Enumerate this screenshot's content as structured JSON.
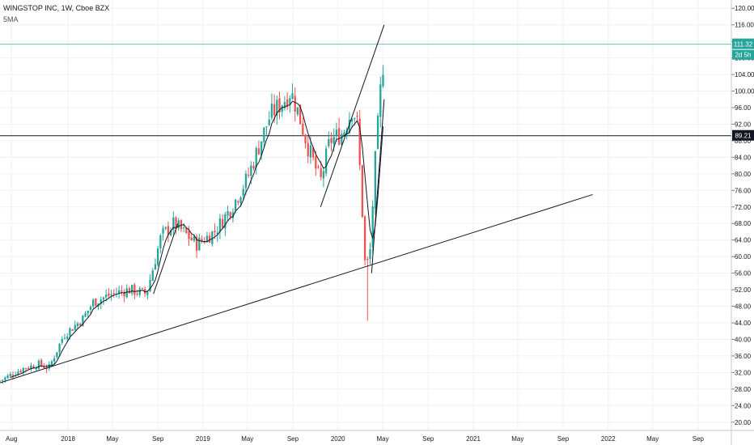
{
  "header": {
    "title": "WINGSTOP INC, 1W, Cboe BZX",
    "indicator": "5MA"
  },
  "price_tag": {
    "last": "111.32",
    "countdown": "2d 5h",
    "level": "89.21"
  },
  "colors": {
    "up": "#26a69a",
    "down": "#ef5350",
    "line": "#131722",
    "grid": "#eef0f4",
    "price_tag": "#26a69a",
    "level_tag": "#131722"
  },
  "chart_data": {
    "type": "candlestick",
    "symbol": "WINGSTOP INC",
    "interval": "1W",
    "exchange": "Cboe BZX",
    "ylim": [
      18,
      122
    ],
    "y_ticks": [
      120,
      116,
      112,
      108,
      104,
      100,
      96,
      92,
      88,
      84,
      80,
      76,
      72,
      68,
      64,
      60,
      56,
      52,
      48,
      44,
      40,
      36,
      32,
      28,
      24,
      20
    ],
    "y_tick_labels": [
      "120.00",
      "116.00",
      "112.00",
      "108.00",
      "104.00",
      "100.00",
      "96.00",
      "92.00",
      "88.00",
      "84.00",
      "80.00",
      "76.00",
      "72.00",
      "68.00",
      "64.00",
      "60.00",
      "56.00",
      "52.00",
      "48.00",
      "44.00",
      "40.00",
      "36.00",
      "32.00",
      "28.00",
      "24.00",
      "20.00"
    ],
    "x_start": "2017-07-01",
    "x_end": "2022-11-30",
    "x_ticks": [
      {
        "label": "Aug",
        "date": "2017-08-01"
      },
      {
        "label": "2018",
        "date": "2018-01-01"
      },
      {
        "label": "May",
        "date": "2018-05-01"
      },
      {
        "label": "Sep",
        "date": "2018-09-01"
      },
      {
        "label": "2019",
        "date": "2019-01-01"
      },
      {
        "label": "May",
        "date": "2019-05-01"
      },
      {
        "label": "Sep",
        "date": "2019-09-01"
      },
      {
        "label": "2020",
        "date": "2020-01-01"
      },
      {
        "label": "May",
        "date": "2020-05-01"
      },
      {
        "label": "Sep",
        "date": "2020-09-01"
      },
      {
        "label": "2021",
        "date": "2021-01-01"
      },
      {
        "label": "May",
        "date": "2021-05-01"
      },
      {
        "label": "Sep",
        "date": "2021-09-01"
      },
      {
        "label": "2022",
        "date": "2022-01-01"
      },
      {
        "label": "May",
        "date": "2022-05-01"
      },
      {
        "label": "Sep",
        "date": "2022-09-01"
      }
    ],
    "close_anchors": [
      [
        "2017-07-01",
        30
      ],
      [
        "2017-09-01",
        33
      ],
      [
        "2017-10-15",
        34
      ],
      [
        "2017-11-10",
        33
      ],
      [
        "2017-12-20",
        41
      ],
      [
        "2018-02-10",
        45
      ],
      [
        "2018-03-10",
        49
      ],
      [
        "2018-05-01",
        51
      ],
      [
        "2018-06-15",
        52
      ],
      [
        "2018-08-01",
        51
      ],
      [
        "2018-09-10",
        65
      ],
      [
        "2018-10-15",
        68
      ],
      [
        "2018-12-15",
        63
      ],
      [
        "2019-02-01",
        66
      ],
      [
        "2019-03-20",
        72
      ],
      [
        "2019-05-01",
        79
      ],
      [
        "2019-07-01",
        94
      ],
      [
        "2019-08-10",
        98
      ],
      [
        "2019-08-26",
        100
      ],
      [
        "2019-09-15",
        95
      ],
      [
        "2019-10-10",
        87
      ],
      [
        "2019-11-15",
        78
      ],
      [
        "2019-12-10",
        88
      ],
      [
        "2020-01-15",
        90
      ],
      [
        "2020-02-10",
        96
      ],
      [
        "2020-02-22",
        92
      ],
      [
        "2020-03-05",
        74
      ],
      [
        "2020-03-15",
        57
      ],
      [
        "2020-03-27",
        60
      ],
      [
        "2020-04-10",
        82
      ],
      [
        "2020-04-25",
        100
      ],
      [
        "2020-05-05",
        109
      ]
    ],
    "reference_levels": [
      111.32,
      89.21
    ],
    "annotations": [
      {
        "type": "trendline",
        "from": [
          "2017-07-01",
          29.5
        ],
        "to": [
          "2021-11-20",
          75
        ]
      },
      {
        "type": "trendline",
        "from": [
          "2018-08-20",
          51
        ],
        "to": [
          "2018-10-25",
          68
        ]
      },
      {
        "type": "trendline",
        "from": [
          "2019-11-15",
          72
        ],
        "to": [
          "2020-05-05",
          116
        ]
      },
      {
        "type": "trendline",
        "from": [
          "2020-04-01",
          56
        ],
        "to": [
          "2020-05-05",
          98
        ]
      },
      {
        "type": "hline",
        "value": 89.21
      },
      {
        "type": "hline",
        "value": 111.32
      }
    ]
  }
}
